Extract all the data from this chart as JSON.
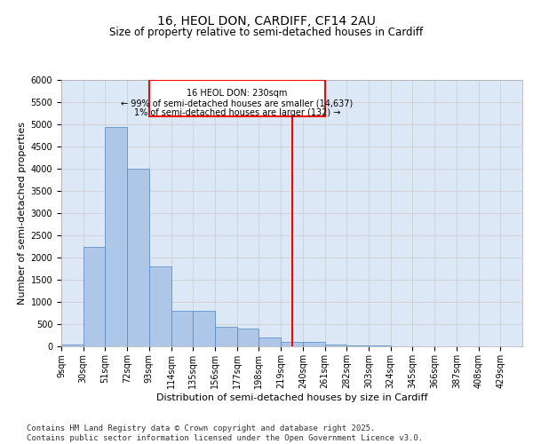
{
  "title1": "16, HEOL DON, CARDIFF, CF14 2AU",
  "title2": "Size of property relative to semi-detached houses in Cardiff",
  "xlabel": "Distribution of semi-detached houses by size in Cardiff",
  "ylabel": "Number of semi-detached properties",
  "bin_labels": [
    "9sqm",
    "30sqm",
    "51sqm",
    "72sqm",
    "93sqm",
    "114sqm",
    "135sqm",
    "156sqm",
    "177sqm",
    "198sqm",
    "219sqm",
    "240sqm",
    "261sqm",
    "282sqm",
    "303sqm",
    "324sqm",
    "345sqm",
    "366sqm",
    "387sqm",
    "408sqm",
    "429sqm"
  ],
  "bin_edges": [
    9,
    30,
    51,
    72,
    93,
    114,
    135,
    156,
    177,
    198,
    219,
    240,
    261,
    282,
    303,
    324,
    345,
    366,
    387,
    408,
    429
  ],
  "bar_heights": [
    50,
    2250,
    4950,
    4000,
    1800,
    800,
    800,
    450,
    400,
    200,
    100,
    100,
    50,
    30,
    20,
    10,
    5,
    5,
    2,
    1,
    0
  ],
  "bar_color": "#aec6e8",
  "bar_edge_color": "#4f86c6",
  "vline_x": 230,
  "vline_color": "red",
  "annotation_line1": "16 HEOL DON: 230sqm",
  "annotation_line2": "← 99% of semi-detached houses are smaller (14,637)",
  "annotation_line3": "1% of semi-detached houses are larger (132) →",
  "ylim": [
    0,
    6000
  ],
  "yticks": [
    0,
    500,
    1000,
    1500,
    2000,
    2500,
    3000,
    3500,
    4000,
    4500,
    5000,
    5500,
    6000
  ],
  "grid_color": "#cccccc",
  "background_color": "#dce8f5",
  "footer_text": "Contains HM Land Registry data © Crown copyright and database right 2025.\nContains public sector information licensed under the Open Government Licence v3.0.",
  "title_fontsize": 10,
  "subtitle_fontsize": 8.5,
  "axis_label_fontsize": 8,
  "tick_fontsize": 7,
  "footer_fontsize": 6.5
}
